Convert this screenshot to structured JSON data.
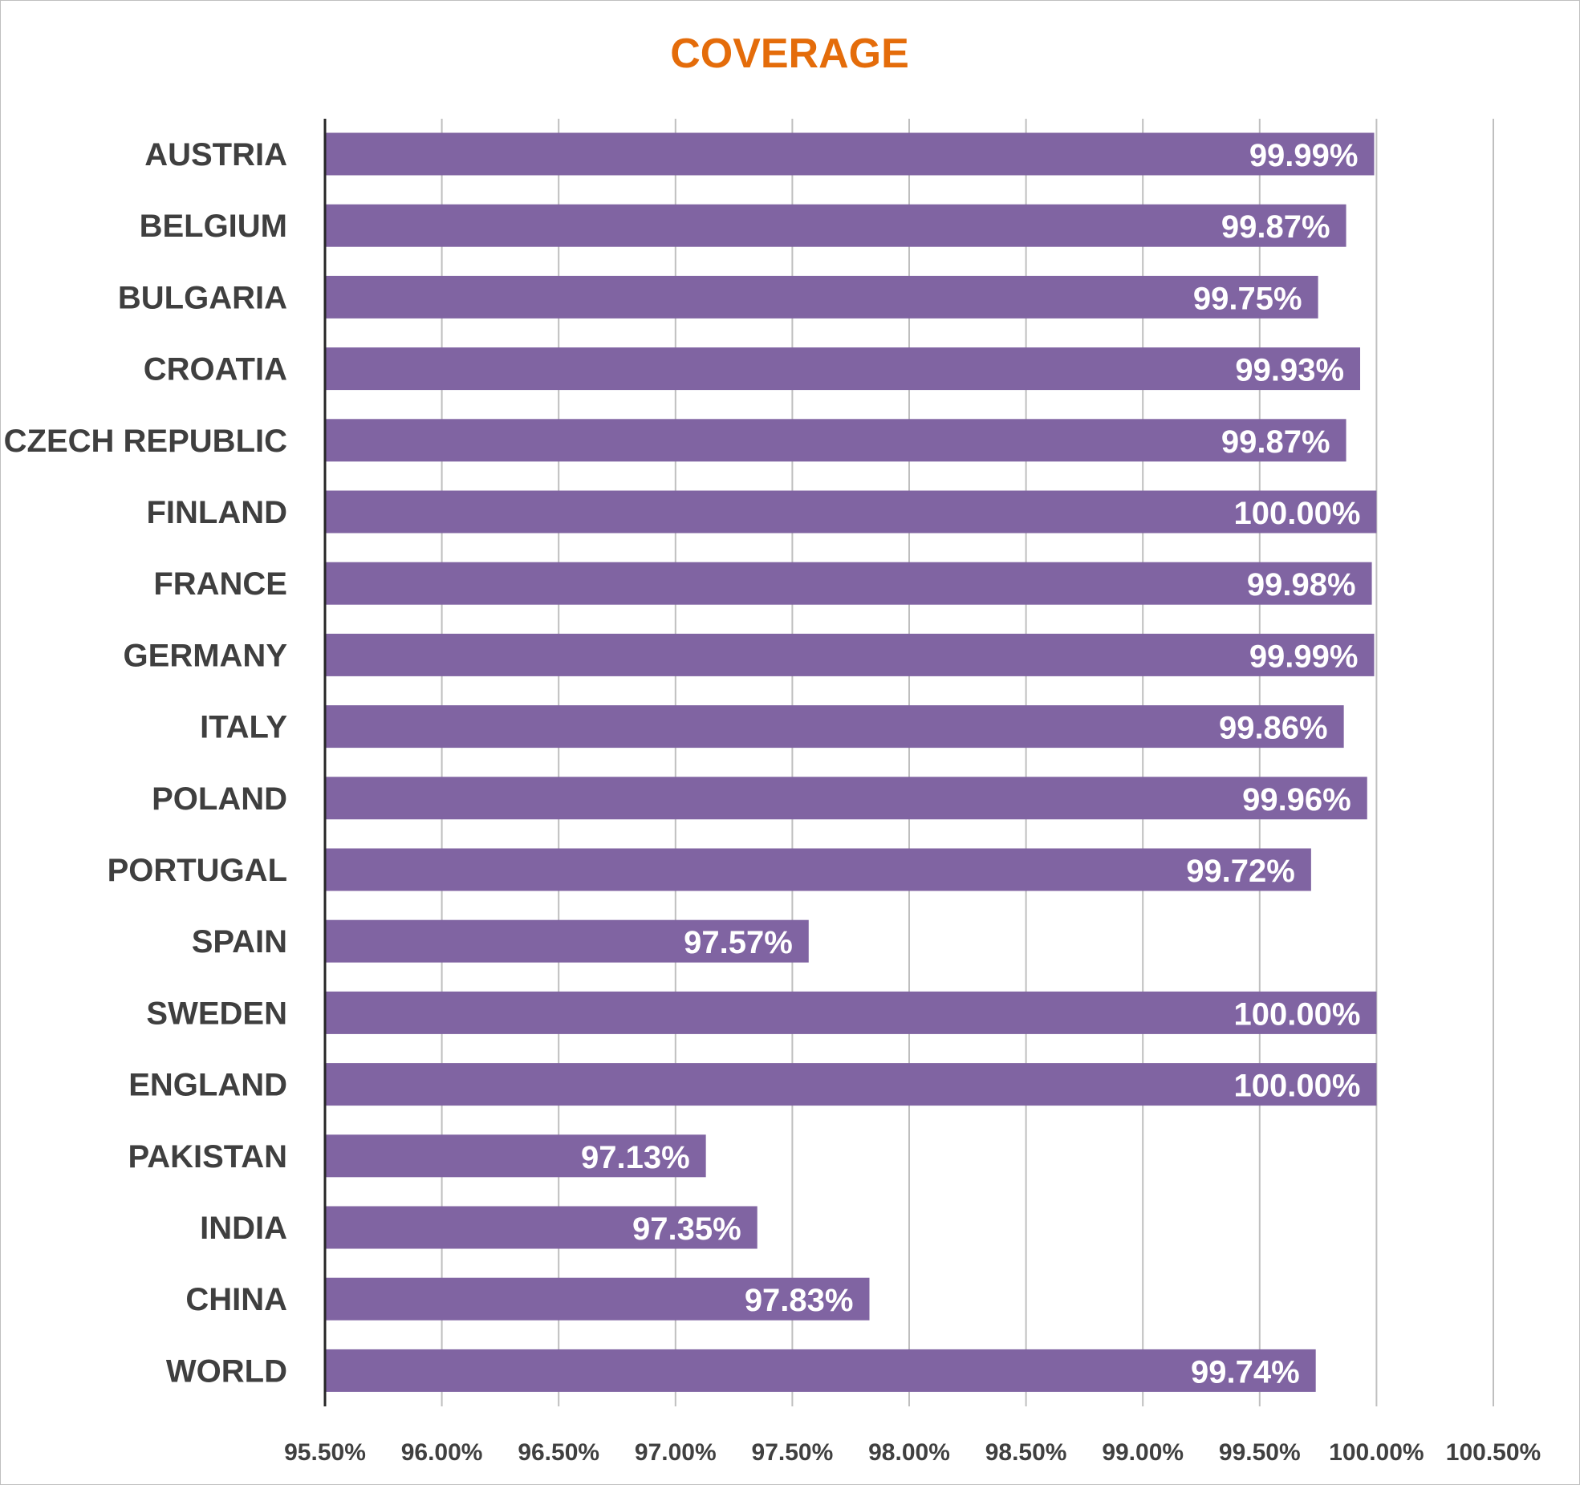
{
  "chart_data": {
    "type": "bar",
    "orientation": "horizontal",
    "title": "COVERAGE",
    "categories": [
      "AUSTRIA",
      "BELGIUM",
      "BULGARIA",
      "CROATIA",
      "CZECH REPUBLIC",
      "FINLAND",
      "FRANCE",
      "GERMANY",
      "ITALY",
      "POLAND",
      "PORTUGAL",
      "SPAIN",
      "SWEDEN",
      "ENGLAND",
      "PAKISTAN",
      "INDIA",
      "CHINA",
      "WORLD"
    ],
    "values": [
      99.99,
      99.87,
      99.75,
      99.93,
      99.87,
      100.0,
      99.98,
      99.99,
      99.86,
      99.96,
      99.72,
      97.57,
      100.0,
      100.0,
      97.13,
      97.35,
      97.83,
      99.74
    ],
    "data_labels": [
      "99.99%",
      "99.87%",
      "99.75%",
      "99.93%",
      "99.87%",
      "100.00%",
      "99.98%",
      "99.99%",
      "99.86%",
      "99.96%",
      "99.72%",
      "97.57%",
      "100.00%",
      "100.00%",
      "97.13%",
      "97.35%",
      "97.83%",
      "99.74%"
    ],
    "xlim": [
      95.5,
      100.5
    ],
    "x_ticks": [
      95.5,
      96.0,
      96.5,
      97.0,
      97.5,
      98.0,
      98.5,
      99.0,
      99.5,
      100.0,
      100.5
    ],
    "x_tick_labels": [
      "95.50%",
      "96.00%",
      "96.50%",
      "97.00%",
      "97.50%",
      "98.00%",
      "98.50%",
      "99.00%",
      "99.50%",
      "100.00%",
      "100.50%"
    ],
    "xlabel": "",
    "ylabel": "",
    "grid": "vertical",
    "legend": "none",
    "colors": {
      "bar": "#8064a2",
      "title": "#e46c0a",
      "grid": "#bfbfbf",
      "axis": "#262626",
      "text": "#3f3f3f",
      "data_label": "#ffffff"
    }
  }
}
